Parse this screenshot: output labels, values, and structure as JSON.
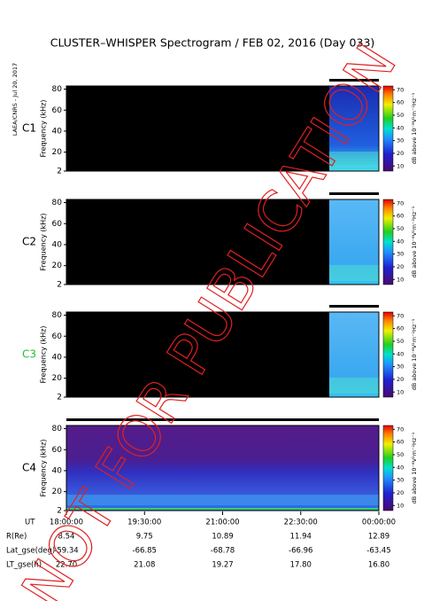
{
  "header": {
    "title": "CLUSTER–WHISPER Spectrogram / FEB 02, 2016 (Day 033)",
    "side_note": "LAEA/CNRS - Jul 20, 2017",
    "watermark": "NOT FOR PUBLICATION"
  },
  "chart_data": [
    {
      "type": "heatmap",
      "panel_label": "C1",
      "panel_color": "#000000",
      "ylabel": "Frequency (kHz)",
      "ylim": [
        2,
        83
      ],
      "yticks": [
        2,
        20,
        40,
        60,
        80
      ],
      "clim": [
        6,
        73
      ],
      "cbar_ticks": [
        10,
        20,
        30,
        40,
        50,
        60,
        70
      ],
      "cbar_label": "dB above 10⁻⁸V²m⁻²Hz⁻¹",
      "coverage": "partial"
    },
    {
      "type": "heatmap",
      "panel_label": "C2",
      "panel_color": "#000000",
      "ylabel": "Frequency (kHz)",
      "ylim": [
        2,
        83
      ],
      "yticks": [
        2,
        20,
        40,
        60,
        80
      ],
      "clim": [
        6,
        73
      ],
      "cbar_ticks": [
        10,
        20,
        30,
        40,
        50,
        60,
        70
      ],
      "cbar_label": "dB above 10⁻⁸V²m⁻²Hz⁻¹",
      "coverage": "partial"
    },
    {
      "type": "heatmap",
      "panel_label": "C3",
      "panel_color": "#1fbf3a",
      "ylabel": "Frequency (kHz)",
      "ylim": [
        2,
        83
      ],
      "yticks": [
        2,
        20,
        40,
        60,
        80
      ],
      "clim": [
        6,
        73
      ],
      "cbar_ticks": [
        10,
        20,
        30,
        40,
        50,
        60,
        70
      ],
      "cbar_label": "dB above 10⁻⁸V²m⁻²Hz⁻¹",
      "coverage": "partial"
    },
    {
      "type": "heatmap",
      "panel_label": "C4",
      "panel_color": "#000000",
      "ylabel": "Frequency (kHz)",
      "ylim": [
        2,
        83
      ],
      "yticks": [
        2,
        20,
        40,
        60,
        80
      ],
      "clim": [
        6,
        73
      ],
      "cbar_ticks": [
        10,
        20,
        30,
        40,
        50,
        60,
        70
      ],
      "cbar_label": "dB above 10⁻⁸V²m⁻²Hz⁻¹",
      "coverage": "full"
    }
  ],
  "ephemeris": {
    "labels": [
      "UT",
      "R(Re)",
      "Lat_gse(deg)",
      "LT_gse(h)"
    ],
    "rows": [
      [
        "18:00:00",
        "19:30:00",
        "21:00:00",
        "22:30:00",
        "00:00:00"
      ],
      [
        "8.54",
        "9.75",
        "10.89",
        "11.94",
        "12.89"
      ],
      [
        "-59.34",
        "-66.85",
        "-68.78",
        "-66.96",
        "-63.45"
      ],
      [
        "22.70",
        "21.08",
        "19.27",
        "17.80",
        "16.80"
      ]
    ]
  }
}
